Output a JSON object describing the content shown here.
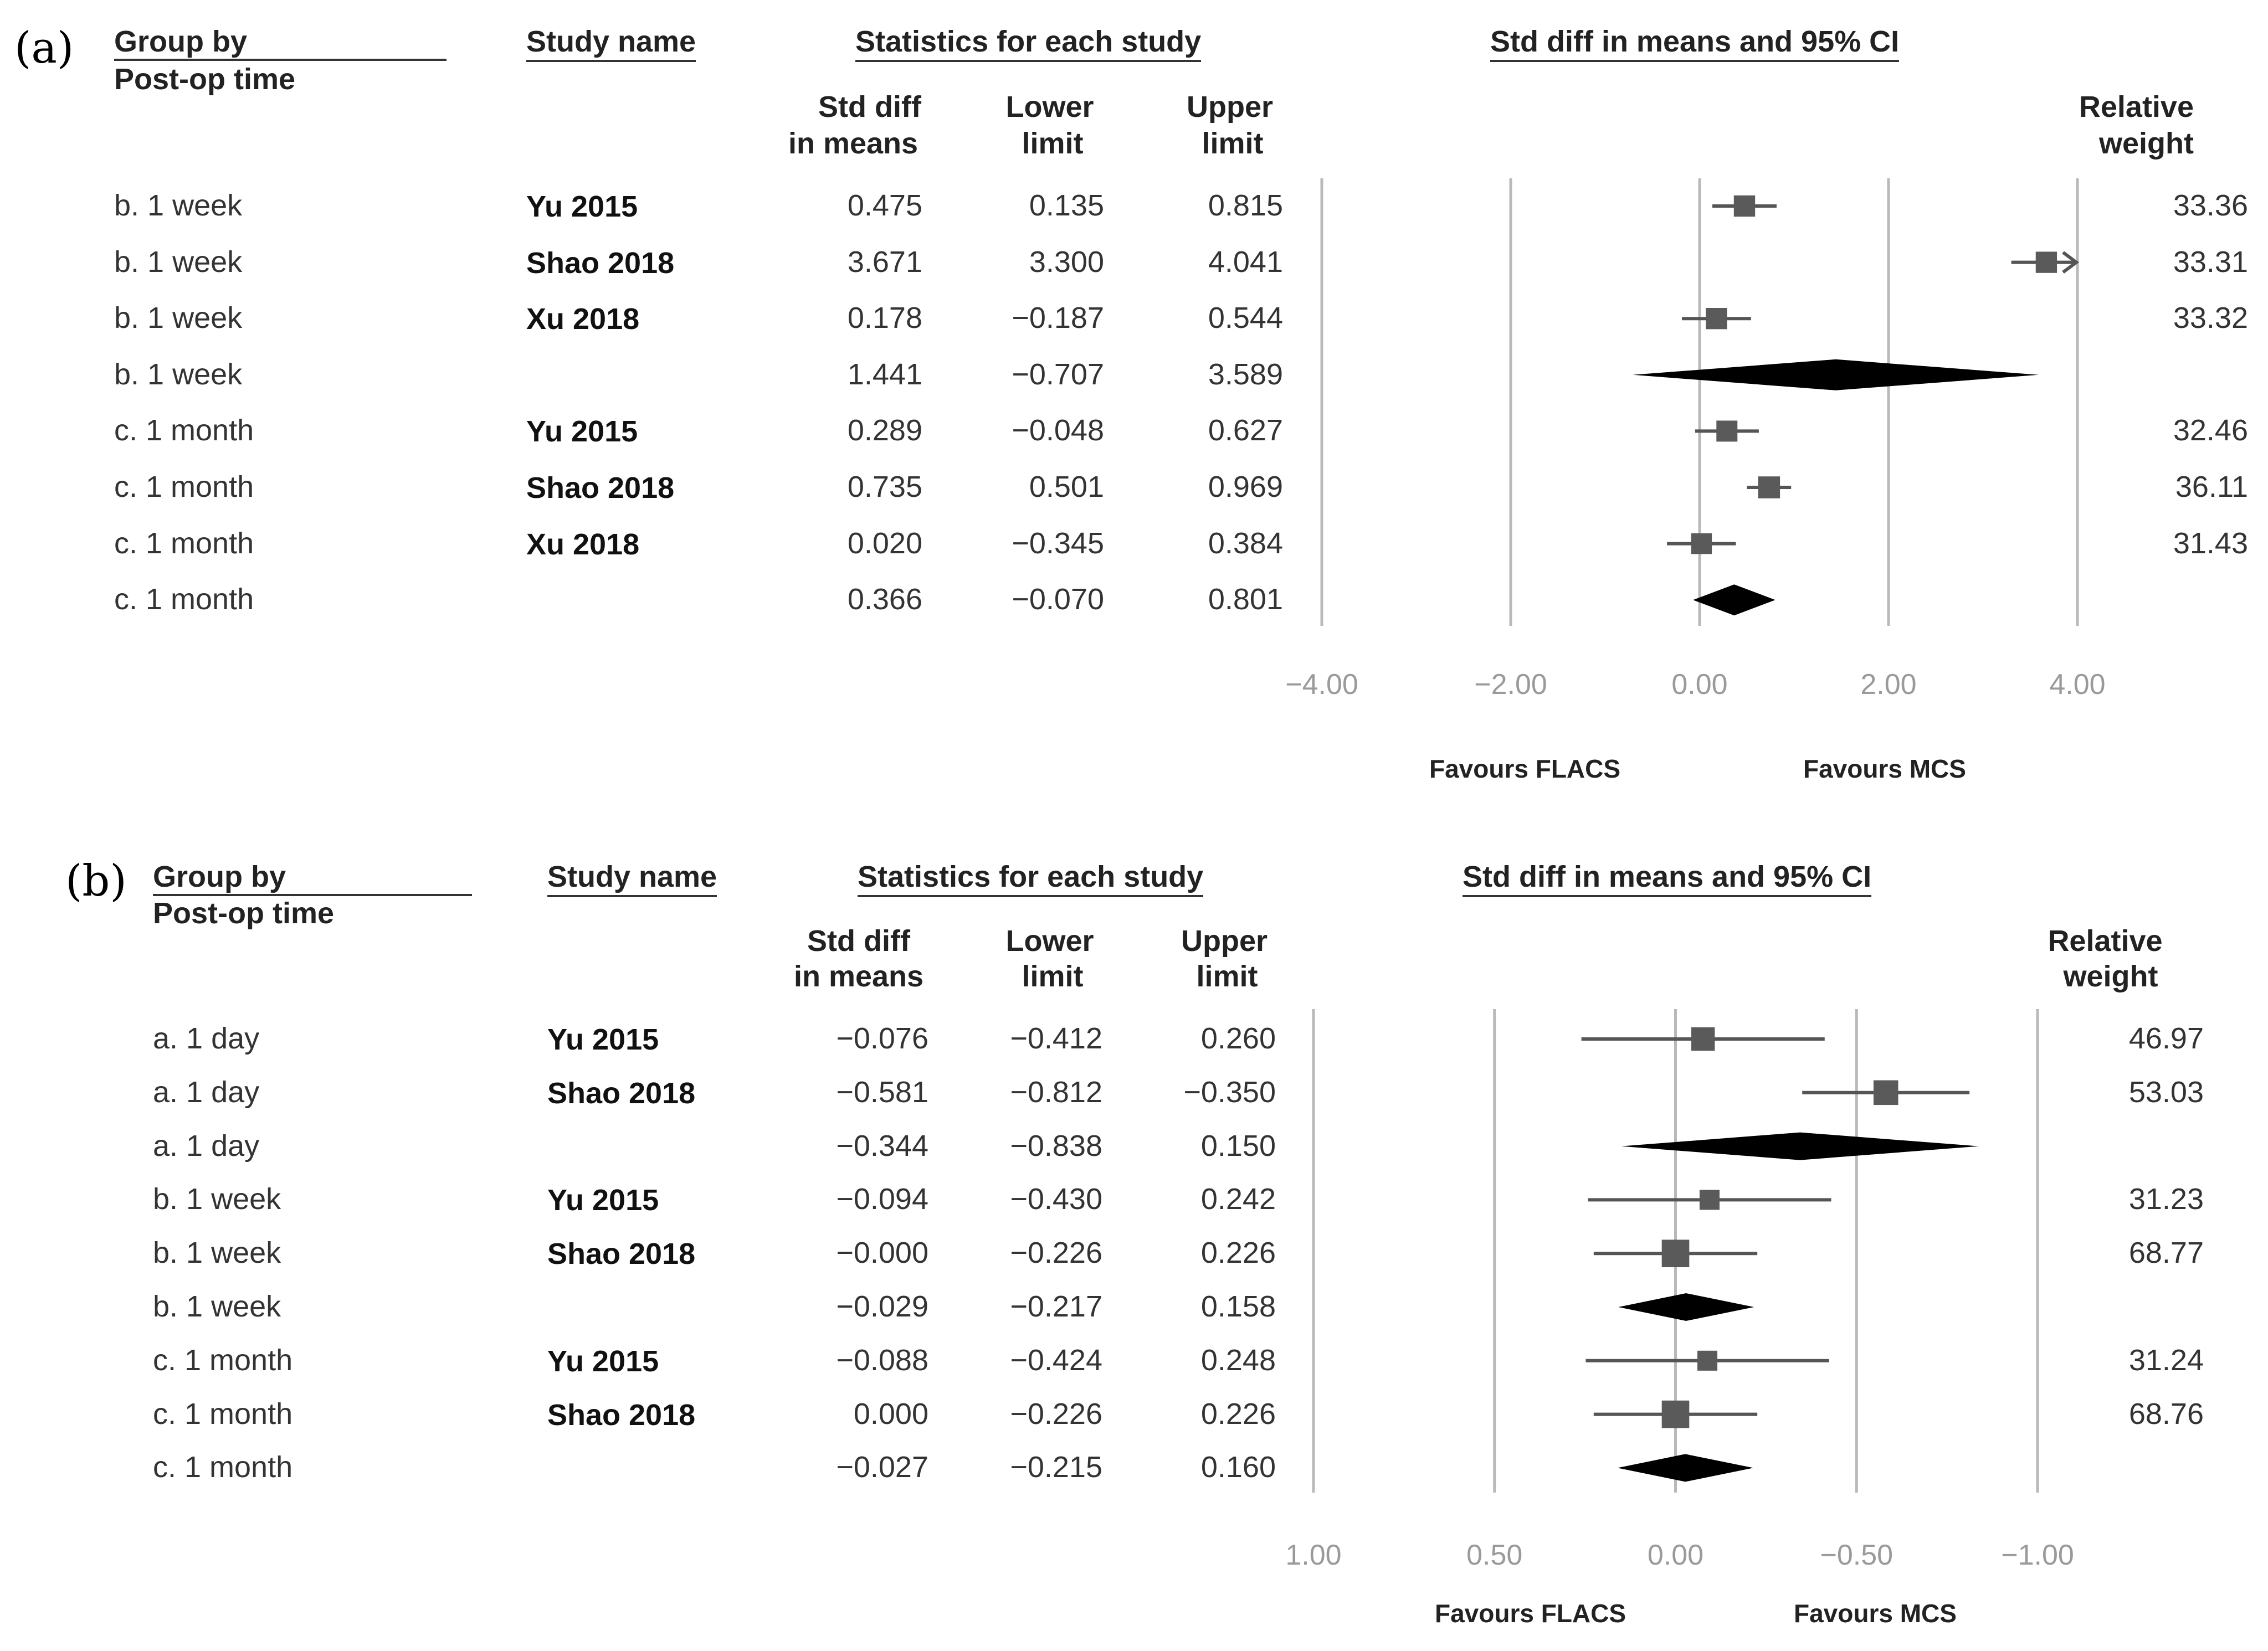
{
  "chart_data": [
    {
      "type": "forest",
      "panel_label": "(a)",
      "headers": {
        "group_by": "Group by",
        "group_by_sub": "Post-op time",
        "study_name": "Study name",
        "stats": "Statistics for each study",
        "plot_title": "Std diff in means and 95% CI",
        "std_diff_1": "Std diff",
        "std_diff_2": "in means",
        "lower_1": "Lower",
        "lower_2": "limit",
        "upper_1": "Upper",
        "upper_2": "limit",
        "rel_1": "Relative",
        "rel_2": "weight"
      },
      "axis": {
        "min": -4,
        "max": 4,
        "ticks": [
          -4,
          -2,
          0,
          2,
          4
        ],
        "tick_labels": [
          "−4.00",
          "−2.00",
          "0.00",
          "2.00",
          "4.00"
        ],
        "reversed": false
      },
      "favours_left": "Favours FLACS",
      "favours_right": "Favours MCS",
      "rows": [
        {
          "group": "b. 1 week",
          "study": "Yu 2015",
          "est": 0.475,
          "lo": 0.135,
          "hi": 0.815,
          "est_text": "0.475",
          "lo_text": "0.135",
          "hi_text": "0.815",
          "weight": "33.36",
          "kind": "study"
        },
        {
          "group": "b. 1 week",
          "study": "Shao 2018",
          "est": 3.671,
          "lo": 3.3,
          "hi": 4.041,
          "est_text": "3.671",
          "lo_text": "3.300",
          "hi_text": "4.041",
          "weight": "33.31",
          "kind": "study",
          "arrow": true
        },
        {
          "group": "b. 1 week",
          "study": "Xu 2018",
          "est": 0.178,
          "lo": -0.187,
          "hi": 0.544,
          "est_text": "0.178",
          "lo_text": "−0.187",
          "hi_text": "0.544",
          "weight": "33.32",
          "kind": "study"
        },
        {
          "group": "b. 1 week",
          "study": "",
          "est": 1.441,
          "lo": -0.707,
          "hi": 3.589,
          "est_text": "1.441",
          "lo_text": "−0.707",
          "hi_text": "3.589",
          "weight": "",
          "kind": "summary"
        },
        {
          "group": "c. 1 month",
          "study": "Yu 2015",
          "est": 0.289,
          "lo": -0.048,
          "hi": 0.627,
          "est_text": "0.289",
          "lo_text": "−0.048",
          "hi_text": "0.627",
          "weight": "32.46",
          "kind": "study"
        },
        {
          "group": "c. 1 month",
          "study": "Shao 2018",
          "est": 0.735,
          "lo": 0.501,
          "hi": 0.969,
          "est_text": "0.735",
          "lo_text": "0.501",
          "hi_text": "0.969",
          "weight": "36.11",
          "kind": "study"
        },
        {
          "group": "c. 1 month",
          "study": "Xu 2018",
          "est": 0.02,
          "lo": -0.345,
          "hi": 0.384,
          "est_text": "0.020",
          "lo_text": "−0.345",
          "hi_text": "0.384",
          "weight": "31.43",
          "kind": "study"
        },
        {
          "group": "c. 1 month",
          "study": "",
          "est": 0.366,
          "lo": -0.07,
          "hi": 0.801,
          "est_text": "0.366",
          "lo_text": "−0.070",
          "hi_text": "0.801",
          "weight": "",
          "kind": "summary"
        }
      ]
    },
    {
      "type": "forest",
      "panel_label": "(b)",
      "headers": {
        "group_by": "Group by",
        "group_by_sub": "Post-op time",
        "study_name": "Study name",
        "stats": "Statistics for each study",
        "plot_title": "Std diff in means and 95% CI",
        "std_diff_1": "Std diff",
        "std_diff_2": "in means",
        "lower_1": "Lower",
        "lower_2": "limit",
        "upper_1": "Upper",
        "upper_2": "limit",
        "rel_1": "Relative",
        "rel_2": "weight"
      },
      "axis": {
        "min": -1,
        "max": 1,
        "ticks": [
          1,
          0.5,
          0,
          -0.5,
          -1
        ],
        "tick_labels": [
          "1.00",
          "0.50",
          "0.00",
          "−0.50",
          "−1.00"
        ],
        "reversed": true
      },
      "favours_left": "Favours FLACS",
      "favours_right": "Favours MCS",
      "rows": [
        {
          "group": "a. 1 day",
          "study": "Yu 2015",
          "est": -0.076,
          "lo": -0.412,
          "hi": 0.26,
          "est_text": "−0.076",
          "lo_text": "−0.412",
          "hi_text": "0.260",
          "weight": "46.97",
          "kind": "study"
        },
        {
          "group": "a. 1 day",
          "study": "Shao 2018",
          "est": -0.581,
          "lo": -0.812,
          "hi": -0.35,
          "est_text": "−0.581",
          "lo_text": "−0.812",
          "hi_text": "−0.350",
          "weight": "53.03",
          "kind": "study"
        },
        {
          "group": "a. 1 day",
          "study": "",
          "est": -0.344,
          "lo": -0.838,
          "hi": 0.15,
          "est_text": "−0.344",
          "lo_text": "−0.838",
          "hi_text": "0.150",
          "weight": "",
          "kind": "summary"
        },
        {
          "group": "b. 1 week",
          "study": "Yu 2015",
          "est": -0.094,
          "lo": -0.43,
          "hi": 0.242,
          "est_text": "−0.094",
          "lo_text": "−0.430",
          "hi_text": "0.242",
          "weight": "31.23",
          "kind": "study"
        },
        {
          "group": "b. 1 week",
          "study": "Shao 2018",
          "est": 0.0,
          "lo": -0.226,
          "hi": 0.226,
          "est_text": "−0.000",
          "lo_text": "−0.226",
          "hi_text": "0.226",
          "weight": "68.77",
          "kind": "study"
        },
        {
          "group": "b. 1 week",
          "study": "",
          "est": -0.029,
          "lo": -0.217,
          "hi": 0.158,
          "est_text": "−0.029",
          "lo_text": "−0.217",
          "hi_text": "0.158",
          "weight": "",
          "kind": "summary"
        },
        {
          "group": "c. 1 month",
          "study": "Yu 2015",
          "est": -0.088,
          "lo": -0.424,
          "hi": 0.248,
          "est_text": "−0.088",
          "lo_text": "−0.424",
          "hi_text": "0.248",
          "weight": "31.24",
          "kind": "study"
        },
        {
          "group": "c. 1 month",
          "study": "Shao 2018",
          "est": 0.0,
          "lo": -0.226,
          "hi": 0.226,
          "est_text": "0.000",
          "lo_text": "−0.226",
          "hi_text": "0.226",
          "weight": "68.76",
          "kind": "study"
        },
        {
          "group": "c. 1 month",
          "study": "",
          "est": -0.027,
          "lo": -0.215,
          "hi": 0.16,
          "est_text": "−0.027",
          "lo_text": "−0.215",
          "hi_text": "0.160",
          "weight": "",
          "kind": "summary"
        }
      ]
    }
  ]
}
